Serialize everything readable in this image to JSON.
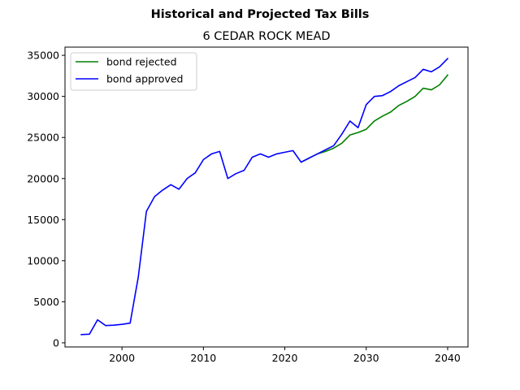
{
  "chart_data": {
    "type": "line",
    "suptitle": "Historical and Projected Tax Bills",
    "title": "6 CEDAR ROCK MEAD",
    "xlabel": "",
    "ylabel": "",
    "xlim": [
      1993,
      2042.5
    ],
    "ylim": [
      -500,
      36000
    ],
    "xticks": [
      2000,
      2010,
      2020,
      2030,
      2040
    ],
    "yticks": [
      0,
      5000,
      10000,
      15000,
      20000,
      25000,
      30000,
      35000
    ],
    "grid": false,
    "legend_position": "upper-left",
    "series": [
      {
        "name": "bond rejected",
        "color": "#008000",
        "x": [
          2022,
          2023,
          2024,
          2025,
          2026,
          2027,
          2028,
          2029,
          2030,
          2031,
          2032,
          2033,
          2034,
          2035,
          2036,
          2037,
          2038,
          2039,
          2040
        ],
        "y": [
          22000,
          22500,
          23000,
          23300,
          23700,
          24300,
          25300,
          25600,
          26000,
          27000,
          27600,
          28100,
          28900,
          29400,
          30000,
          31000,
          30800,
          31400,
          32600
        ]
      },
      {
        "name": "bond approved",
        "color": "#0000ff",
        "x": [
          1995,
          1996,
          1997,
          1998,
          1999,
          2000,
          2001,
          2002,
          2003,
          2004,
          2005,
          2006,
          2007,
          2008,
          2009,
          2010,
          2011,
          2012,
          2013,
          2014,
          2015,
          2016,
          2017,
          2018,
          2019,
          2020,
          2021,
          2022,
          2023,
          2024,
          2025,
          2026,
          2027,
          2028,
          2029,
          2030,
          2031,
          2032,
          2033,
          2034,
          2035,
          2036,
          2037,
          2038,
          2039,
          2040
        ],
        "y": [
          1000,
          1050,
          2800,
          2100,
          2150,
          2250,
          2400,
          8000,
          16000,
          17800,
          18600,
          19250,
          18700,
          20000,
          20700,
          22300,
          23000,
          23300,
          20000,
          20600,
          21000,
          22600,
          23000,
          22600,
          23000,
          23200,
          23400,
          22000,
          22500,
          23000,
          23500,
          24000,
          25400,
          27000,
          26200,
          29000,
          30000,
          30100,
          30600,
          31300,
          31800,
          32300,
          33300,
          33000,
          33600,
          34600
        ]
      }
    ]
  }
}
